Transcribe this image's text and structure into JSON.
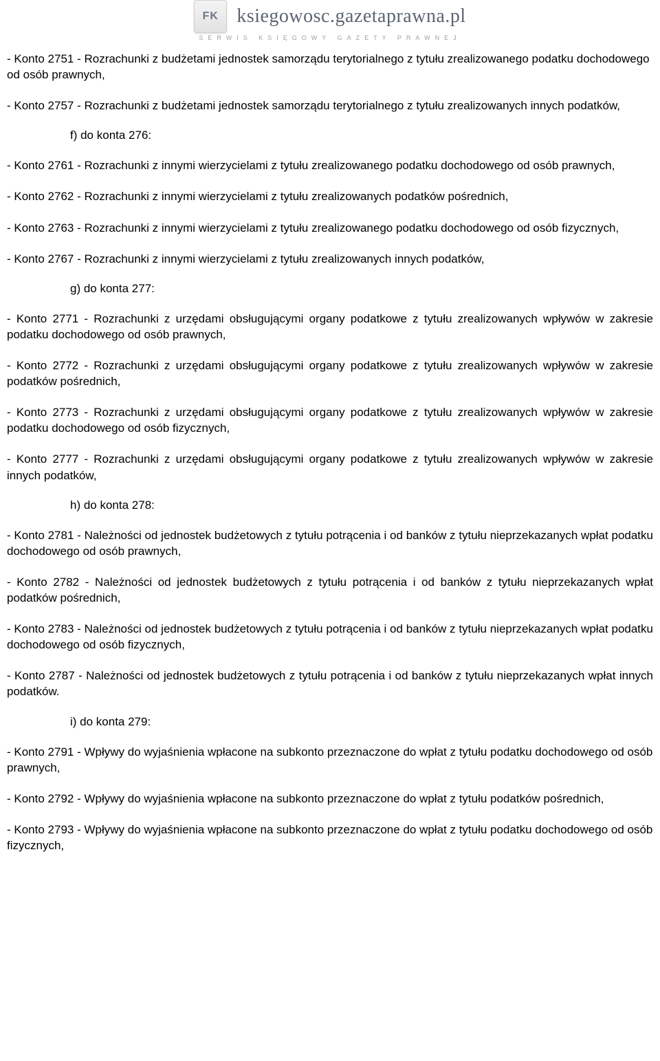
{
  "header": {
    "logo_text": "FK",
    "site_title": "ksiegowosc.gazetaprawna.pl",
    "site_subtitle": "SERWIS  KSIĘGOWY  GAZETY  PRAWNEJ"
  },
  "content": {
    "p1": "- Konto 2751 - Rozrachunki z budżetami jednostek samorządu terytorialnego z tytułu zrealizowanego podatku dochodowego od osób prawnych,",
    "p2": "- Konto 2757 - Rozrachunki z budżetami jednostek samorządu terytorialnego z tytułu zrealizowanych innych podatków,",
    "h_f": "f) do konta 276:",
    "p3": "- Konto 2761 - Rozrachunki z innymi wierzycielami z tytułu zrealizowanego podatku dochodowego od osób prawnych,",
    "p4": "- Konto 2762 - Rozrachunki z innymi wierzycielami z tytułu zrealizowanych podatków pośrednich,",
    "p5": "- Konto 2763 - Rozrachunki z innymi wierzycielami z tytułu zrealizowanego podatku dochodowego od osób fizycznych,",
    "p6": "- Konto 2767 - Rozrachunki z innymi wierzycielami z tytułu zrealizowanych innych podatków,",
    "h_g": "g) do konta 277:",
    "p7": "- Konto 2771 - Rozrachunki z urzędami obsługującymi organy podatkowe z tytułu zrealizowanych wpływów w zakresie podatku dochodowego od osób prawnych,",
    "p8": "- Konto 2772 - Rozrachunki z urzędami obsługującymi organy podatkowe z tytułu zrealizowanych wpływów w zakresie podatków pośrednich,",
    "p9": "- Konto 2773 - Rozrachunki z urzędami obsługującymi organy podatkowe z tytułu zrealizowanych wpływów w zakresie podatku dochodowego od osób fizycznych,",
    "p10": "- Konto 2777 - Rozrachunki z urzędami obsługującymi organy podatkowe z tytułu zrealizowanych wpływów w zakresie innych podatków,",
    "h_h": "h) do konta 278:",
    "p11": "- Konto 2781 - Należności od jednostek budżetowych z tytułu potrącenia i od banków z tytułu nieprzekazanych wpłat podatku dochodowego od osób prawnych,",
    "p12": "- Konto 2782 - Należności od jednostek budżetowych z tytułu potrącenia i od banków z tytułu nieprzekazanych wpłat podatków pośrednich,",
    "p13": "- Konto 2783 - Należności od jednostek budżetowych z tytułu potrącenia i od banków z tytułu nieprzekazanych wpłat podatku dochodowego od osób fizycznych,",
    "p14": "- Konto 2787 - Należności od jednostek budżetowych z tytułu potrącenia i od banków z tytułu nieprzekazanych wpłat innych podatków.",
    "h_i": "i) do konta 279:",
    "p15": "- Konto 2791 - Wpływy do wyjaśnienia wpłacone na subkonto przeznaczone do wpłat z tytułu podatku dochodowego od osób prawnych,",
    "p16": "- Konto 2792 - Wpływy do wyjaśnienia wpłacone na subkonto przeznaczone do wpłat z tytułu podatków pośrednich,",
    "p17": "- Konto 2793 - Wpływy do wyjaśnienia wpłacone na subkonto przeznaczone do wpłat z tytułu podatku dochodowego od osób fizycznych,"
  }
}
